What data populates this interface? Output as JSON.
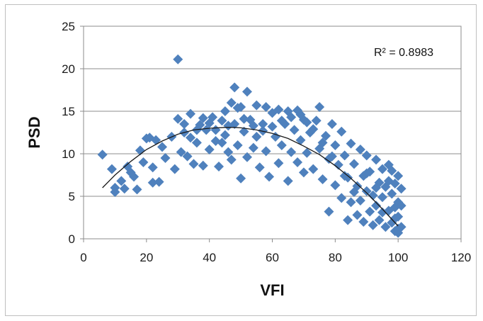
{
  "chart_data": {
    "type": "scatter",
    "xlabel": "VFI",
    "ylabel": "PSD",
    "xlim": [
      0,
      120
    ],
    "ylim": [
      0,
      25
    ],
    "x_ticks": [
      0,
      20,
      40,
      60,
      80,
      100,
      120
    ],
    "y_ticks": [
      0,
      5,
      10,
      15,
      20,
      25
    ],
    "x_tick_labels": [
      "0",
      "20",
      "40",
      "60",
      "80",
      "100",
      "120"
    ],
    "y_tick_labels": [
      "0",
      "5",
      "10",
      "15",
      "20",
      "25"
    ],
    "grid": "horizontal",
    "marker": "diamond",
    "marker_color": "#4f81bd",
    "trendline_color": "#1a1a1a",
    "annotation": "R² = 0.8983",
    "trendline": {
      "type": "polynomial",
      "x": [
        6,
        10,
        15,
        20,
        25,
        30,
        35,
        40,
        45,
        48,
        50,
        55,
        60,
        65,
        70,
        75,
        80,
        85,
        90,
        95,
        100
      ],
      "y": [
        6.0,
        7.5,
        9.1,
        10.5,
        11.5,
        12.3,
        12.8,
        13.0,
        13.1,
        13.1,
        13.05,
        12.8,
        12.4,
        11.8,
        10.9,
        9.9,
        8.6,
        7.1,
        5.4,
        3.5,
        1.5
      ]
    },
    "points": [
      [
        6,
        9.9
      ],
      [
        9,
        8.2
      ],
      [
        10,
        6.0
      ],
      [
        10,
        5.5
      ],
      [
        12,
        6.8
      ],
      [
        13,
        5.9
      ],
      [
        14,
        8.5
      ],
      [
        15,
        7.8
      ],
      [
        16,
        7.3
      ],
      [
        17,
        5.8
      ],
      [
        18,
        10.4
      ],
      [
        19,
        9.0
      ],
      [
        20,
        11.8
      ],
      [
        21,
        11.9
      ],
      [
        22,
        8.4
      ],
      [
        22,
        6.6
      ],
      [
        23,
        11.6
      ],
      [
        24,
        6.7
      ],
      [
        25,
        10.8
      ],
      [
        26,
        9.5
      ],
      [
        28,
        12.0
      ],
      [
        29,
        8.2
      ],
      [
        30,
        14.1
      ],
      [
        30,
        21.1
      ],
      [
        31,
        10.2
      ],
      [
        32,
        12.5
      ],
      [
        33,
        9.7
      ],
      [
        34,
        14.7
      ],
      [
        35,
        8.8
      ],
      [
        36,
        11.3
      ],
      [
        37,
        13.4
      ],
      [
        38,
        8.6
      ],
      [
        39,
        12.8
      ],
      [
        40,
        10.5
      ],
      [
        41,
        14.3
      ],
      [
        42,
        11.5
      ],
      [
        43,
        8.5
      ],
      [
        44,
        13.9
      ],
      [
        45,
        12.2
      ],
      [
        45,
        15.0
      ],
      [
        46,
        10.2
      ],
      [
        47,
        9.3
      ],
      [
        47,
        16.0
      ],
      [
        48,
        13.5
      ],
      [
        48,
        17.8
      ],
      [
        49,
        11.0
      ],
      [
        50,
        7.1
      ],
      [
        50,
        15.5
      ],
      [
        51,
        12.6
      ],
      [
        52,
        9.6
      ],
      [
        52,
        17.3
      ],
      [
        53,
        14.0
      ],
      [
        54,
        10.7
      ],
      [
        55,
        15.7
      ],
      [
        55,
        12.0
      ],
      [
        56,
        8.4
      ],
      [
        57,
        13.5
      ],
      [
        58,
        15.5
      ],
      [
        58,
        10.3
      ],
      [
        59,
        7.3
      ],
      [
        60,
        14.8
      ],
      [
        61,
        12.0
      ],
      [
        62,
        15.2
      ],
      [
        62,
        8.9
      ],
      [
        63,
        11.0
      ],
      [
        64,
        13.5
      ],
      [
        65,
        6.8
      ],
      [
        65,
        15.0
      ],
      [
        66,
        10.2
      ],
      [
        67,
        12.8
      ],
      [
        68,
        9.0
      ],
      [
        68,
        15.1
      ],
      [
        69,
        11.6
      ],
      [
        70,
        7.8
      ],
      [
        70,
        14.0
      ],
      [
        71,
        10.1
      ],
      [
        72,
        12.5
      ],
      [
        73,
        8.2
      ],
      [
        74,
        13.9
      ],
      [
        75,
        10.6
      ],
      [
        75,
        15.5
      ],
      [
        76,
        7.0
      ],
      [
        77,
        12.1
      ],
      [
        78,
        9.4
      ],
      [
        78,
        3.2
      ],
      [
        79,
        13.5
      ],
      [
        80,
        6.3
      ],
      [
        80,
        11.0
      ],
      [
        81,
        8.7
      ],
      [
        82,
        12.6
      ],
      [
        82,
        4.8
      ],
      [
        83,
        9.8
      ],
      [
        84,
        2.2
      ],
      [
        84,
        7.2
      ],
      [
        85,
        11.2
      ],
      [
        85,
        4.3
      ],
      [
        86,
        8.8
      ],
      [
        87,
        2.8
      ],
      [
        87,
        6.2
      ],
      [
        88,
        10.5
      ],
      [
        88,
        4.5
      ],
      [
        89,
        7.4
      ],
      [
        89,
        2.0
      ],
      [
        90,
        9.8
      ],
      [
        90,
        5.6
      ],
      [
        91,
        3.2
      ],
      [
        91,
        7.9
      ],
      [
        92,
        1.6
      ],
      [
        92,
        5.1
      ],
      [
        93,
        9.3
      ],
      [
        93,
        3.9
      ],
      [
        94,
        6.6
      ],
      [
        94,
        2.2
      ],
      [
        95,
        8.2
      ],
      [
        95,
        4.9
      ],
      [
        96,
        1.4
      ],
      [
        96,
        6.1
      ],
      [
        97,
        3.3
      ],
      [
        97,
        8.7
      ],
      [
        98,
        1.9
      ],
      [
        98,
        5.3
      ],
      [
        98,
        8.0
      ],
      [
        99,
        0.9
      ],
      [
        99,
        3.7
      ],
      [
        99,
        6.5
      ],
      [
        100,
        1.2
      ],
      [
        100,
        4.3
      ],
      [
        100,
        7.4
      ],
      [
        100,
        2.6
      ],
      [
        101,
        3.9
      ],
      [
        101,
        1.4
      ],
      [
        101,
        5.9
      ],
      [
        100,
        0.7
      ],
      [
        99,
        2.4
      ],
      [
        97,
        6.8
      ],
      [
        95,
        3.1
      ],
      [
        93,
        6.0
      ],
      [
        90,
        7.7
      ],
      [
        86,
        5.5
      ],
      [
        83,
        7.4
      ],
      [
        79,
        9.7
      ],
      [
        76,
        11.3
      ],
      [
        73,
        12.9
      ],
      [
        71,
        13.7
      ],
      [
        69,
        14.6
      ],
      [
        66,
        14.3
      ],
      [
        63,
        13.9
      ],
      [
        60,
        13.2
      ],
      [
        57,
        12.7
      ],
      [
        54,
        13.3
      ],
      [
        51,
        14.1
      ],
      [
        49,
        15.4
      ],
      [
        46,
        13.3
      ],
      [
        44,
        11.3
      ],
      [
        42,
        12.8
      ],
      [
        40,
        13.6
      ],
      [
        38,
        14.2
      ],
      [
        36,
        12.8
      ],
      [
        34,
        11.9
      ],
      [
        32,
        13.5
      ]
    ]
  }
}
